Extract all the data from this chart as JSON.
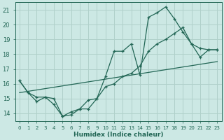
{
  "xlabel": "Humidex (Indice chaleur)",
  "xlim": [
    -0.5,
    23.5
  ],
  "ylim": [
    13.5,
    21.5
  ],
  "yticks": [
    14,
    15,
    16,
    17,
    18,
    19,
    20,
    21
  ],
  "xticks": [
    0,
    1,
    2,
    3,
    4,
    5,
    6,
    7,
    8,
    9,
    10,
    11,
    12,
    13,
    14,
    15,
    16,
    17,
    18,
    19,
    20,
    21,
    22,
    23
  ],
  "bg_color": "#cce8e4",
  "grid_color": "#b0d0ca",
  "line_color": "#226655",
  "line1_x": [
    0,
    1,
    2,
    3,
    4,
    5,
    6,
    7,
    8,
    9,
    10,
    11,
    12,
    13,
    14,
    15,
    16,
    17,
    18,
    19,
    20,
    21,
    22,
    23
  ],
  "line1_y": [
    16.2,
    15.4,
    14.8,
    15.1,
    14.6,
    13.8,
    14.1,
    14.3,
    14.3,
    15.0,
    15.8,
    16.0,
    16.5,
    16.7,
    17.2,
    18.2,
    18.7,
    19.0,
    19.4,
    19.8,
    18.7,
    18.4,
    18.3,
    18.3
  ],
  "line2_x": [
    0,
    1,
    2,
    3,
    4,
    5,
    6,
    7,
    8,
    9,
    10,
    11,
    12,
    13,
    14,
    15,
    16,
    17,
    18,
    19,
    20,
    21,
    22,
    23
  ],
  "line2_y": [
    16.2,
    15.4,
    15.1,
    15.1,
    15.0,
    13.8,
    13.9,
    14.3,
    14.9,
    15.0,
    16.5,
    18.2,
    18.2,
    18.7,
    16.6,
    20.5,
    20.8,
    21.2,
    20.4,
    19.5,
    18.7,
    17.8,
    18.3,
    18.3
  ],
  "line3_x": [
    0,
    23
  ],
  "line3_y": [
    15.4,
    17.5
  ]
}
